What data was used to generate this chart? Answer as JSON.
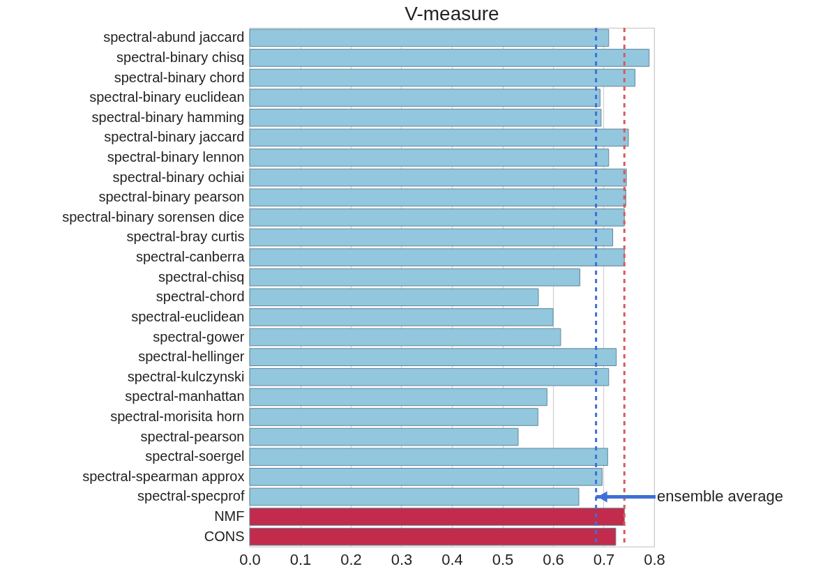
{
  "chart_data": {
    "type": "bar",
    "orientation": "horizontal",
    "title": "V-measure",
    "categories": [
      "spectral-abund jaccard",
      "spectral-binary chisq",
      "spectral-binary chord",
      "spectral-binary euclidean",
      "spectral-binary hamming",
      "spectral-binary jaccard",
      "spectral-binary lennon",
      "spectral-binary ochiai",
      "spectral-binary pearson",
      "spectral-binary sorensen dice",
      "spectral-bray curtis",
      "spectral-canberra",
      "spectral-chisq",
      "spectral-chord",
      "spectral-euclidean",
      "spectral-gower",
      "spectral-hellinger",
      "spectral-kulczynski",
      "spectral-manhattan",
      "spectral-morisita horn",
      "spectral-pearson",
      "spectral-soergel",
      "spectral-spearman approx",
      "spectral-specprof",
      "NMF",
      "CONS"
    ],
    "values": [
      0.71,
      0.79,
      0.762,
      0.693,
      0.695,
      0.749,
      0.71,
      0.745,
      0.744,
      0.741,
      0.718,
      0.741,
      0.653,
      0.571,
      0.6,
      0.615,
      0.725,
      0.71,
      0.588,
      0.57,
      0.531,
      0.708,
      0.697,
      0.651,
      0.741,
      0.724
    ],
    "colors": [
      "#92c7de",
      "#92c7de",
      "#92c7de",
      "#92c7de",
      "#92c7de",
      "#92c7de",
      "#92c7de",
      "#92c7de",
      "#92c7de",
      "#92c7de",
      "#92c7de",
      "#92c7de",
      "#92c7de",
      "#92c7de",
      "#92c7de",
      "#92c7de",
      "#92c7de",
      "#92c7de",
      "#92c7de",
      "#92c7de",
      "#92c7de",
      "#92c7de",
      "#92c7de",
      "#92c7de",
      "#c22b4b",
      "#c22b4b"
    ],
    "xlim": [
      0,
      0.8
    ],
    "xticks": [
      {
        "value": 0,
        "label": "0.0"
      },
      0.1,
      0.2,
      0.3,
      0.4,
      0.5,
      0.6,
      0.7,
      0.8
    ],
    "grid": "x",
    "ref_lines": [
      {
        "axis": "x",
        "value": 0.685,
        "color": "#3e6fd6",
        "line_style": "dashed"
      },
      {
        "axis": "x",
        "value": 0.741,
        "color": "#d9595b",
        "line_style": "dashed"
      }
    ],
    "annotations": [
      {
        "text": "ensemble average",
        "x": 0.685,
        "y": "spectral-specprof"
      }
    ]
  }
}
